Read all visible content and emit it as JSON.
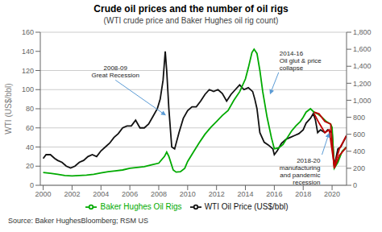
{
  "chart_data": {
    "type": "line",
    "title": "Crude oil prices and the number of oil rigs",
    "subtitle": "(WTI crude price and Baker Hughes oil rig count)",
    "ylabel": "WTI (US$/bbl)",
    "source": "Source: Baker HughesBloomberg; RSM US",
    "legend": "bottom",
    "grid": "y",
    "xlim": [
      1999.8,
      2021.0
    ],
    "xticks": [
      2000,
      2002,
      2004,
      2006,
      2008,
      2010,
      2012,
      2014,
      2016,
      2018,
      2020
    ],
    "ylim": [
      0,
      160
    ],
    "yticks": [
      0,
      20,
      40,
      60,
      80,
      100,
      120,
      140,
      160
    ],
    "y2lim": [
      0,
      1800
    ],
    "y2ticks": [
      0,
      200,
      400,
      600,
      800,
      {
        "value": 1000,
        "label": "1,000"
      },
      {
        "value": 1200,
        "label": "1,200"
      },
      {
        "value": 1400,
        "label": "1,400"
      },
      {
        "value": 1600,
        "label": "1,600"
      },
      {
        "value": 1800,
        "label": "1,800"
      }
    ],
    "series": [
      {
        "name": "WTI Oil Price (US$/bbl)",
        "color": "#111111",
        "axis": "y",
        "x": [
          2000.0,
          2000.2,
          2000.5,
          2000.8,
          2001.0,
          2001.3,
          2001.6,
          2001.9,
          2002.2,
          2002.5,
          2002.8,
          2003.1,
          2003.4,
          2003.7,
          2004.0,
          2004.3,
          2004.6,
          2004.9,
          2005.2,
          2005.5,
          2005.8,
          2006.1,
          2006.4,
          2006.7,
          2007.0,
          2007.3,
          2007.6,
          2007.9,
          2008.1,
          2008.3,
          2008.45,
          2008.55,
          2008.7,
          2008.9,
          2009.1,
          2009.4,
          2009.7,
          2010.0,
          2010.3,
          2010.6,
          2010.9,
          2011.2,
          2011.5,
          2011.8,
          2012.1,
          2012.4,
          2012.7,
          2013.0,
          2013.3,
          2013.6,
          2013.9,
          2014.2,
          2014.5,
          2014.65,
          2014.8,
          2015.0,
          2015.3,
          2015.6,
          2015.9,
          2016.0,
          2016.2,
          2016.5,
          2016.8,
          2017.1,
          2017.4,
          2017.7,
          2018.0,
          2018.2,
          2018.5,
          2018.7,
          2018.85,
          2019.0,
          2019.2,
          2019.5,
          2019.7,
          2020.0,
          2020.15,
          2020.4,
          2020.6,
          2020.8,
          2021.0
        ],
        "values": [
          28,
          32,
          32,
          28,
          26,
          24,
          20,
          18,
          20,
          24,
          26,
          30,
          32,
          30,
          36,
          40,
          44,
          50,
          54,
          60,
          62,
          62,
          68,
          60,
          60,
          64,
          72,
          80,
          90,
          110,
          140,
          120,
          80,
          40,
          38,
          55,
          70,
          78,
          82,
          82,
          88,
          95,
          100,
          98,
          100,
          96,
          88,
          95,
          100,
          105,
          100,
          102,
          98,
          90,
          80,
          55,
          45,
          42,
          38,
          32,
          36,
          44,
          48,
          50,
          52,
          54,
          58,
          65,
          70,
          75,
          68,
          55,
          58,
          55,
          58,
          55,
          20,
          38,
          40,
          46,
          52
        ]
      },
      {
        "name": "Baker Hughes Oil Rigs",
        "color": "#00aa00",
        "axis": "y2",
        "x": [
          2000.0,
          2000.5,
          2001.0,
          2001.5,
          2002.0,
          2002.5,
          2003.0,
          2003.5,
          2004.0,
          2004.5,
          2005.0,
          2005.5,
          2006.0,
          2006.5,
          2007.0,
          2007.5,
          2008.0,
          2008.4,
          2008.55,
          2008.7,
          2009.0,
          2009.2,
          2009.5,
          2009.8,
          2010.0,
          2010.4,
          2010.8,
          2011.2,
          2011.6,
          2012.0,
          2012.4,
          2012.8,
          2013.2,
          2013.6,
          2014.0,
          2014.2,
          2014.45,
          2014.6,
          2014.8,
          2015.0,
          2015.2,
          2015.5,
          2015.8,
          2016.0,
          2016.3,
          2016.6,
          2016.9,
          2017.2,
          2017.5,
          2017.8,
          2018.0,
          2018.2,
          2018.5,
          2018.75,
          2019.0,
          2019.3,
          2019.6,
          2019.9,
          2020.0,
          2020.15,
          2020.4,
          2020.7,
          2021.0
        ],
        "values": [
          150,
          140,
          130,
          115,
          110,
          115,
          120,
          130,
          145,
          160,
          170,
          180,
          200,
          210,
          220,
          240,
          260,
          340,
          390,
          340,
          180,
          155,
          160,
          200,
          280,
          390,
          500,
          600,
          680,
          750,
          820,
          880,
          1000,
          1100,
          1250,
          1380,
          1560,
          1600,
          1550,
          1350,
          1100,
          800,
          560,
          430,
          440,
          480,
          560,
          640,
          700,
          750,
          800,
          860,
          900,
          860,
          840,
          800,
          750,
          720,
          680,
          200,
          270,
          400,
          450
        ]
      },
      {
        "color": "#c00000",
        "axis": "y",
        "x": [
          2018.75,
          2019.1,
          2019.5,
          2019.8,
          2020.15,
          2020.5,
          2021.0
        ],
        "values": [
          75,
          65,
          55,
          58,
          20,
          38,
          52
        ]
      },
      {
        "color": "#c00000",
        "axis": "y2",
        "x": [
          2018.75,
          2019.1,
          2019.5,
          2019.9,
          2020.15,
          2020.5,
          2021.0
        ],
        "values": [
          860,
          840,
          750,
          720,
          200,
          350,
          450
        ]
      }
    ],
    "annotations": [
      {
        "text": "2008-09\nGreat Recession",
        "x": 2008.5,
        "y": 73,
        "text_x": 2005.0,
        "text_y": 110,
        "color": "#5b9bd5"
      },
      {
        "text": "2014-16\nOil glut & price\ncollapse",
        "x": 2015.7,
        "y": 95,
        "text_x": 2016.3,
        "text_y": 118,
        "color": "#5b9bd5"
      },
      {
        "text": "2018-20\nmanufacturing\nand pandemic\nrecession",
        "x": 2019.8,
        "y": 55,
        "text_x": 2019.3,
        "text_y": 32,
        "color": "#5b9bd5"
      }
    ]
  }
}
